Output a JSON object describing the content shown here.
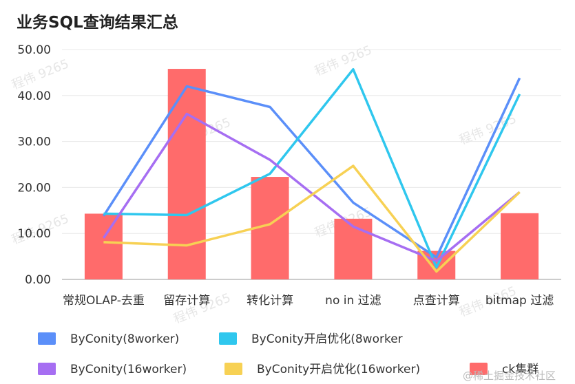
{
  "chart_data": {
    "type": "bar+line",
    "title": "业务SQL查询结果汇总",
    "categories": [
      "常规OLAP-去重",
      "留存计算",
      "转化计算",
      "no in 过滤",
      "点查计算",
      "bitmap 过滤"
    ],
    "ylim": [
      0,
      50
    ],
    "yticks": [
      "0.00",
      "10.00",
      "20.00",
      "30.00",
      "40.00",
      "50.00"
    ],
    "grid": true,
    "legend_placement": "bottom",
    "bars": {
      "name": "ck集群",
      "color": "#ff6b6b",
      "values": [
        14.3,
        45.8,
        22.3,
        13.2,
        6.2,
        14.4
      ]
    },
    "series": [
      {
        "name": "ByConity(8worker)",
        "color": "#5b8ff9",
        "values": [
          13.8,
          42.0,
          37.5,
          16.7,
          4.8,
          43.8
        ]
      },
      {
        "name": "ByConity开启优化(8worker",
        "color": "#2fc7ee",
        "values": [
          14.3,
          14.0,
          23.0,
          45.7,
          2.6,
          40.3
        ]
      },
      {
        "name": "ByConity(16worker)",
        "color": "#a66ef2",
        "values": [
          9.0,
          36.0,
          26.0,
          11.5,
          4.0,
          19.0
        ]
      },
      {
        "name": "ByConity开启优化(16worker)",
        "color": "#f7d154",
        "values": [
          8.1,
          7.4,
          12.0,
          24.7,
          1.7,
          19.0
        ]
      }
    ]
  },
  "watermark_text": "程伟 9265",
  "footer_text": "@稀土掘金技术社区"
}
